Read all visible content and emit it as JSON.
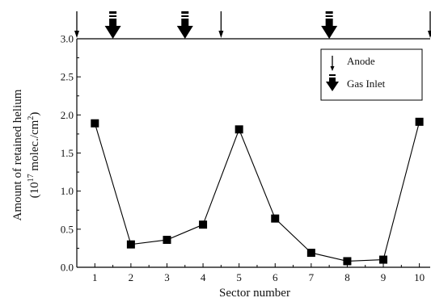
{
  "chart_data": {
    "type": "line",
    "xlabel": "Sector number",
    "ylabel_line1": "Amount of retained helium",
    "ylabel_line2_prefix": "(10",
    "ylabel_line2_exp": "17",
    "ylabel_line2_mid": " molec./cm",
    "ylabel_line2_exp2": "2",
    "ylabel_line2_suffix": ")",
    "xlim": [
      0.5,
      10.3
    ],
    "ylim": [
      0,
      3.0
    ],
    "x_ticks": [
      1,
      2,
      3,
      4,
      5,
      6,
      7,
      8,
      9,
      10
    ],
    "x_tick_labels": [
      "1",
      "2",
      "3",
      "4",
      "5",
      "6",
      "7",
      "8",
      "9",
      "10"
    ],
    "y_ticks": [
      0,
      0.5,
      1.0,
      1.5,
      2.0,
      2.5,
      3.0
    ],
    "y_tick_labels": [
      "0.0",
      "0.5",
      "1.0",
      "1.5",
      "2.0",
      "2.5",
      "3.0"
    ],
    "grid": false,
    "legend_position": "top-right",
    "series": [
      {
        "x": [
          1,
          2,
          3,
          4,
          5,
          6,
          7,
          8,
          9,
          10
        ],
        "values": [
          1.89,
          0.3,
          0.36,
          0.56,
          1.81,
          0.64,
          0.19,
          0.08,
          0.1,
          1.91
        ],
        "color": "#000000",
        "marker": "square"
      }
    ],
    "markers": {
      "anode": {
        "label": "Anode",
        "positions": [
          0.5,
          4.5,
          10.3
        ]
      },
      "gas_inlet": {
        "label": "Gas Inlet",
        "positions": [
          1.5,
          3.5,
          7.5
        ]
      }
    }
  }
}
